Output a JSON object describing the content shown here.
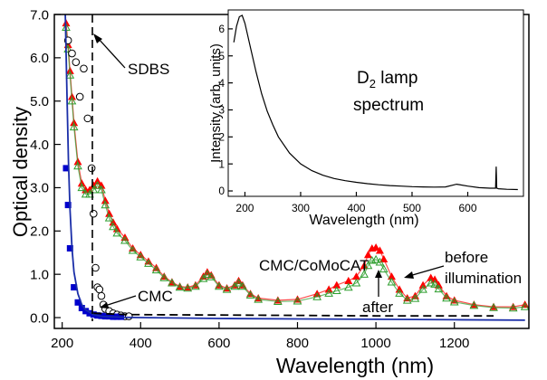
{
  "chart_data": [
    {
      "type": "line",
      "xlabel": "Wavelength (nm)",
      "ylabel": "Optical density",
      "xlim": [
        180,
        1390
      ],
      "ylim": [
        -0.25,
        7.0
      ],
      "xticks": [
        200,
        400,
        600,
        800,
        1000,
        1200
      ],
      "yticks": [
        0.0,
        1.0,
        2.0,
        3.0,
        4.0,
        5.0,
        6.0,
        7.0
      ],
      "ytick_labels": [
        "0.0",
        "1.0",
        "2.0",
        "3.0",
        "4.0",
        "5.0",
        "6.0",
        "7.0"
      ],
      "grid": false,
      "series": [
        {
          "name": "before illumination",
          "marker": "triangle",
          "color": "#ff0000",
          "x": [
            210,
            215,
            220,
            225,
            230,
            240,
            250,
            260,
            270,
            280,
            290,
            300,
            310,
            320,
            330,
            340,
            360,
            380,
            400,
            420,
            440,
            460,
            480,
            500,
            520,
            540,
            560,
            570,
            580,
            600,
            620,
            640,
            650,
            660,
            680,
            700,
            750,
            800,
            850,
            880,
            900,
            930,
            950,
            970,
            980,
            990,
            1000,
            1010,
            1020,
            1040,
            1060,
            1080,
            1100,
            1120,
            1140,
            1150,
            1160,
            1180,
            1200,
            1250,
            1300,
            1350,
            1380
          ],
          "y": [
            6.8,
            6.3,
            5.7,
            5.1,
            4.5,
            3.6,
            3.1,
            2.95,
            2.95,
            3.05,
            3.15,
            3.05,
            2.7,
            2.4,
            2.2,
            2.05,
            1.85,
            1.6,
            1.45,
            1.3,
            1.15,
            0.95,
            0.82,
            0.72,
            0.7,
            0.75,
            0.95,
            1.05,
            0.98,
            0.75,
            0.68,
            0.75,
            0.85,
            0.75,
            0.55,
            0.45,
            0.4,
            0.42,
            0.55,
            0.65,
            0.75,
            0.85,
            0.95,
            1.2,
            1.45,
            1.6,
            1.62,
            1.55,
            1.35,
            0.95,
            0.65,
            0.45,
            0.5,
            0.75,
            0.92,
            0.88,
            0.75,
            0.5,
            0.4,
            0.3,
            0.25,
            0.25,
            0.3
          ]
        },
        {
          "name": "after",
          "marker": "triangle-open",
          "color": "#2e9e2e",
          "x": [
            210,
            215,
            220,
            225,
            230,
            240,
            250,
            260,
            270,
            280,
            290,
            300,
            310,
            320,
            330,
            340,
            360,
            380,
            400,
            420,
            440,
            460,
            480,
            500,
            520,
            540,
            560,
            570,
            580,
            600,
            620,
            640,
            650,
            660,
            680,
            700,
            750,
            800,
            850,
            880,
            900,
            930,
            950,
            970,
            980,
            990,
            1000,
            1010,
            1020,
            1040,
            1060,
            1080,
            1100,
            1120,
            1140,
            1150,
            1160,
            1180,
            1200,
            1250,
            1300,
            1350,
            1380
          ],
          "y": [
            6.7,
            6.2,
            5.6,
            5.0,
            4.4,
            3.5,
            3.0,
            2.85,
            2.85,
            2.95,
            3.05,
            2.95,
            2.6,
            2.3,
            2.1,
            1.95,
            1.78,
            1.55,
            1.4,
            1.25,
            1.1,
            0.92,
            0.8,
            0.7,
            0.68,
            0.72,
            0.9,
            1.0,
            0.94,
            0.72,
            0.65,
            0.72,
            0.8,
            0.72,
            0.52,
            0.42,
            0.37,
            0.38,
            0.48,
            0.56,
            0.62,
            0.7,
            0.8,
            1.0,
            1.2,
            1.32,
            1.34,
            1.28,
            1.12,
            0.82,
            0.56,
            0.4,
            0.44,
            0.65,
            0.8,
            0.77,
            0.66,
            0.45,
            0.36,
            0.28,
            0.23,
            0.22,
            0.25
          ]
        },
        {
          "name": "SDBS",
          "marker": "circle-open",
          "color": "#000000",
          "x": [
            215,
            225,
            235,
            245,
            255,
            265,
            275,
            280,
            285,
            290,
            295,
            300,
            305,
            310,
            320,
            330,
            340,
            350,
            360,
            370
          ],
          "y": [
            6.4,
            6.1,
            5.9,
            5.1,
            5.75,
            4.6,
            3.45,
            2.4,
            1.15,
            0.7,
            0.65,
            0.5,
            0.3,
            0.2,
            0.15,
            0.1,
            0.07,
            0.05,
            0.03,
            0.03
          ]
        },
        {
          "name": "CMC",
          "marker": "square",
          "color": "#0000cc",
          "x": [
            210,
            215,
            220,
            230,
            240,
            250,
            260,
            270,
            280,
            290,
            300,
            310,
            320,
            330,
            340,
            350
          ],
          "y": [
            3.45,
            2.6,
            1.6,
            0.7,
            0.35,
            0.22,
            0.15,
            0.1,
            0.07,
            0.05,
            0.04,
            0.03,
            0.03,
            0.02,
            0.02,
            0.02
          ]
        },
        {
          "name": "CMC fit",
          "marker": "none",
          "color": "#1a2ea8",
          "x": [
            208,
            212,
            216,
            220,
            225,
            230,
            240,
            250,
            260,
            280,
            300,
            350,
            400,
            600,
            800,
            1000,
            1200,
            1380
          ],
          "y": [
            7.0,
            5.2,
            3.6,
            2.5,
            1.6,
            1.05,
            0.55,
            0.3,
            0.18,
            0.07,
            0.03,
            0.01,
            0.0,
            -0.02,
            -0.03,
            -0.04,
            -0.05,
            -0.06
          ]
        },
        {
          "name": "SDBS baseline",
          "marker": "dashed",
          "color": "#000000",
          "x": [
            280,
            360,
            600,
            800,
            1000,
            1200,
            1300
          ],
          "y": [
            0.1,
            0.07,
            0.06,
            0.05,
            0.04,
            0.04,
            0.04
          ]
        }
      ],
      "annotations": [
        {
          "text": "SDBS",
          "x": 345,
          "y": 6.2
        },
        {
          "text": "CMC",
          "x": 330,
          "y": 0.7
        },
        {
          "text": "CMC/CoMoCAT",
          "x": 760,
          "y": 1.15
        },
        {
          "text": "before",
          "x": 1135,
          "y": 1.55
        },
        {
          "text": "illumination",
          "x": 1130,
          "y": 1.0
        },
        {
          "text": "after",
          "x": 960,
          "y": 0.45
        }
      ],
      "vline_dashed_x": 277
    },
    {
      "type": "line",
      "title_lines": [
        "D",
        "2",
        " lamp",
        "spectrum"
      ],
      "xlabel": "Wavelength (nm)",
      "ylabel": "Intensity (arb. units)",
      "xlim": [
        170,
        700
      ],
      "ylim": [
        -0.2,
        6.7
      ],
      "xticks": [
        200,
        300,
        400,
        500,
        600
      ],
      "yticks": [
        0,
        1,
        2,
        3,
        4,
        5,
        6
      ],
      "grid": false,
      "series": [
        {
          "name": "D2 lamp spectrum",
          "color": "#000000",
          "x": [
            180,
            185,
            190,
            195,
            200,
            210,
            220,
            230,
            240,
            250,
            260,
            280,
            300,
            320,
            340,
            360,
            380,
            400,
            420,
            440,
            460,
            480,
            500,
            520,
            540,
            560,
            580,
            600,
            620,
            640,
            650,
            651,
            652,
            655,
            670,
            690
          ],
          "y": [
            5.5,
            6.1,
            6.45,
            6.5,
            6.2,
            5.3,
            4.4,
            3.6,
            2.95,
            2.45,
            2.0,
            1.4,
            1.0,
            0.75,
            0.58,
            0.46,
            0.38,
            0.32,
            0.27,
            0.23,
            0.2,
            0.18,
            0.16,
            0.15,
            0.14,
            0.15,
            0.25,
            0.18,
            0.12,
            0.1,
            0.1,
            0.9,
            0.1,
            0.08,
            0.06,
            0.05
          ]
        }
      ]
    }
  ]
}
